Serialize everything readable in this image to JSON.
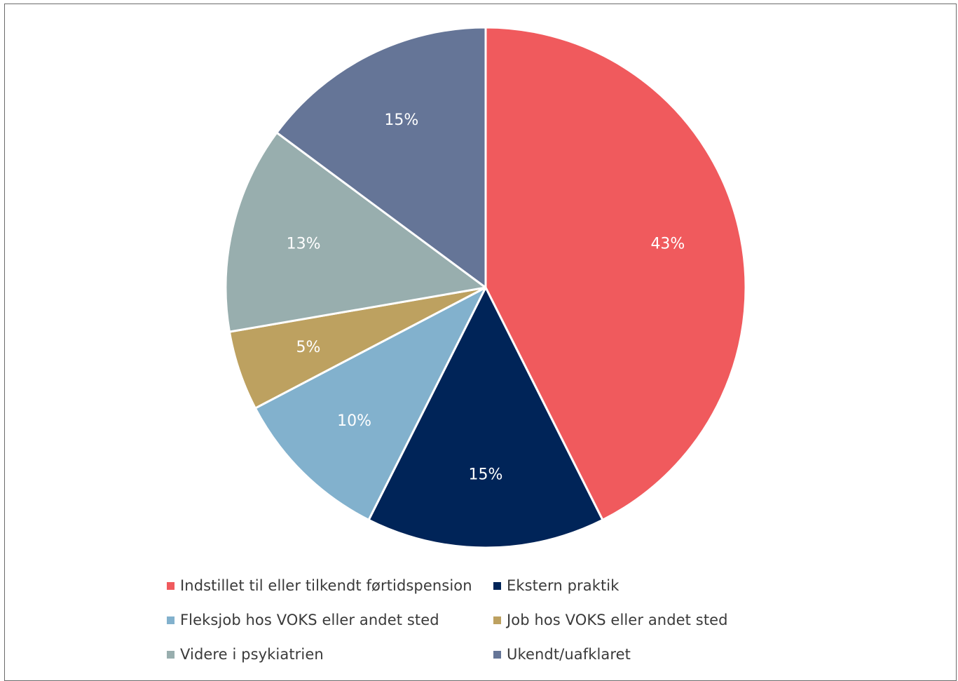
{
  "chart_data": {
    "type": "pie",
    "title": "",
    "categories": [
      "Indstillet til eller tilkendt førtidspension",
      "Ekstern praktik",
      "Fleksjob hos VOKS eller andet sted",
      "Job hos VOKS eller andet sted",
      "Videre i psykiatrien",
      "Ukendt/uafklaret"
    ],
    "values": [
      43,
      15,
      10,
      5,
      13,
      15
    ],
    "labels": [
      "43%",
      "15%",
      "10%",
      "5%",
      "13%",
      "15%"
    ],
    "colors": [
      "#f05a5d",
      "#002458",
      "#82b1cd",
      "#bda160",
      "#98aeae",
      "#657597"
    ],
    "start_angle_deg": 0,
    "direction": "clockwise",
    "legend_position": "bottom"
  },
  "legend": {
    "items": [
      {
        "label": "Indstillet til eller tilkendt førtidspension",
        "color": "#f05a5d"
      },
      {
        "label": "Ekstern praktik",
        "color": "#002458"
      },
      {
        "label": "Fleksjob hos VOKS eller andet sted",
        "color": "#82b1cd"
      },
      {
        "label": "Job hos VOKS eller andet sted",
        "color": "#bda160"
      },
      {
        "label": "Videre i psykiatrien",
        "color": "#98aeae"
      },
      {
        "label": "Ukendt/uafklaret",
        "color": "#657597"
      }
    ]
  }
}
